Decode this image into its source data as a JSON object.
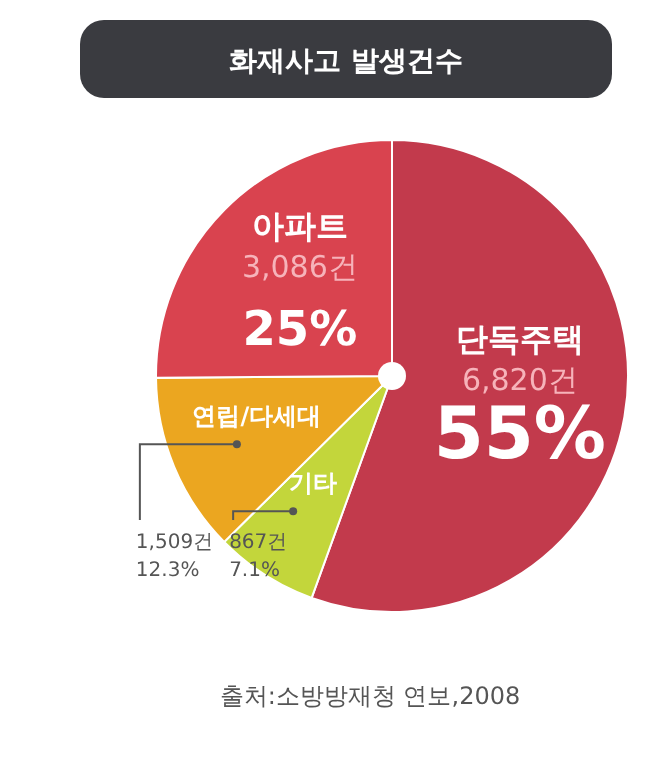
{
  "chart_data": {
    "type": "pie",
    "title": "화재사고 발생건수",
    "categories": [
      "단독주택",
      "기타",
      "연립/다세대",
      "아파트"
    ],
    "values": [
      6820,
      867,
      1509,
      3086
    ],
    "colors": [
      "#c23a4c",
      "#c3d63b",
      "#eba620",
      "#d9434f"
    ],
    "value_labels": [
      "6,820건",
      "867건",
      "1,509건",
      "3,086건"
    ],
    "annotations": [
      {
        "text": "55%",
        "x": "단독주택"
      },
      {
        "text": "7.1%",
        "x": "기타"
      },
      {
        "text": "12.3%",
        "x": "연립/다세대"
      },
      {
        "text": "25%",
        "x": "아파트"
      },
      "출처:소방방재청 연보,2008"
    ]
  }
}
